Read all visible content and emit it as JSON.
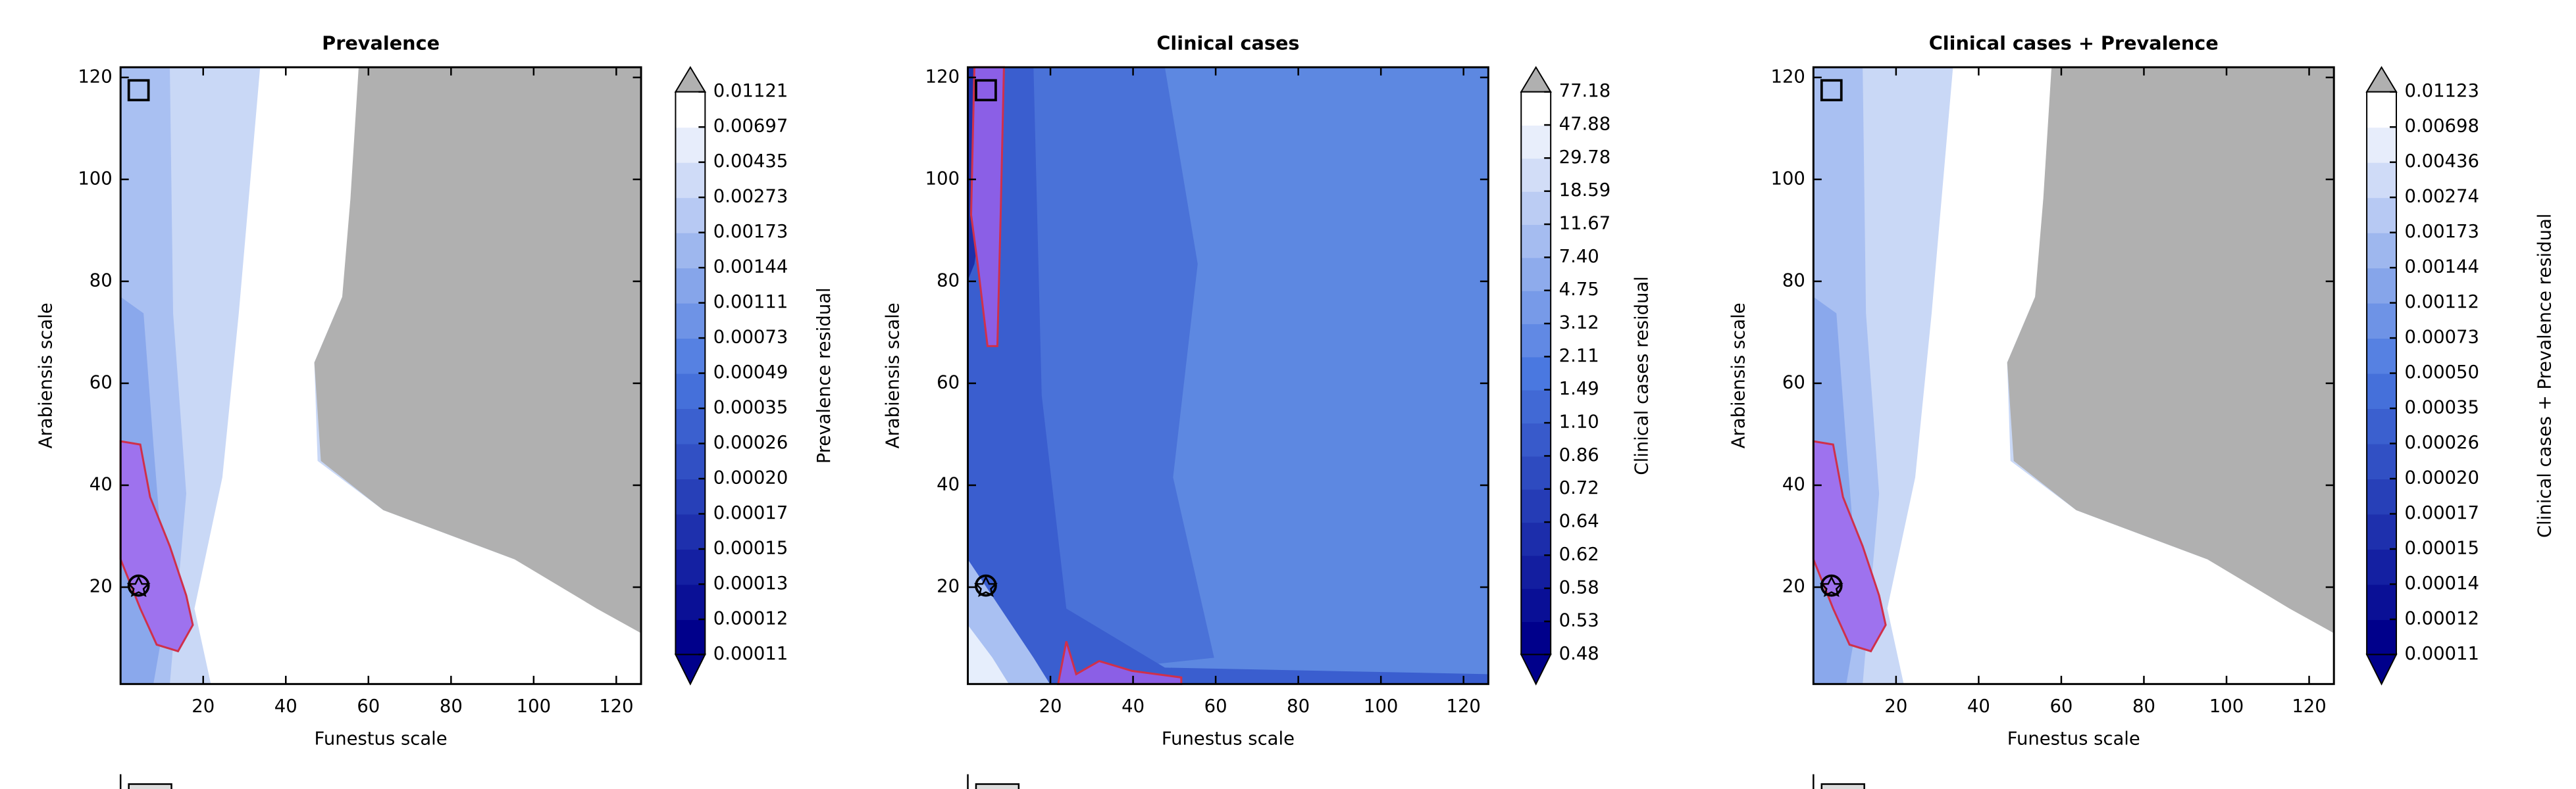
{
  "chart_data": [
    {
      "type": "contour",
      "title": "Prevalence",
      "xlabel": "Funestus scale",
      "ylabel": "Arabiensis scale",
      "xlim": [
        0,
        126
      ],
      "ylim": [
        1,
        122
      ],
      "xticks": [
        20,
        40,
        60,
        80,
        100,
        120
      ],
      "yticks": [
        20,
        40,
        60,
        80,
        100,
        120
      ],
      "colorbar_label": "Prevalence residual",
      "levels": [
        0.00011,
        0.00012,
        0.00013,
        0.00015,
        0.00017,
        {
          "value": 0.0002,
          "label": "0.00020"
        },
        0.00026,
        0.00035,
        0.00049,
        0.00073,
        0.00111,
        0.00144,
        0.00173,
        0.00273,
        0.00435,
        0.00697,
        0.01121
      ]
    },
    {
      "type": "contour",
      "title": "Clinical cases",
      "xlabel": "Funestus scale",
      "ylabel": "Arabiensis scale",
      "xlim": [
        0,
        126
      ],
      "ylim": [
        1,
        122
      ],
      "xticks": [
        20,
        40,
        60,
        80,
        100,
        120
      ],
      "yticks": [
        20,
        40,
        60,
        80,
        100,
        120
      ],
      "colorbar_label": "Clinical cases residual",
      "levels": [
        0.48,
        0.53,
        0.58,
        0.62,
        0.64,
        0.72,
        0.86,
        {
          "value": 1.1,
          "label": "1.10"
        },
        1.49,
        2.11,
        3.12,
        4.75,
        {
          "value": 7.4,
          "label": "7.40"
        },
        11.67,
        18.59,
        29.78,
        47.88,
        77.18
      ]
    },
    {
      "type": "contour",
      "title": "Clinical cases + Prevalence",
      "xlabel": "Funestus scale",
      "ylabel": "Arabiensis scale",
      "xlim": [
        0,
        126
      ],
      "ylim": [
        1,
        122
      ],
      "xticks": [
        20,
        40,
        60,
        80,
        100,
        120
      ],
      "yticks": [
        20,
        40,
        60,
        80,
        100,
        120
      ],
      "colorbar_label": "Clinical cases + Prevalence residual",
      "levels": [
        0.00011,
        0.00012,
        0.00014,
        0.00015,
        0.00017,
        {
          "value": 0.0002,
          "label": "0.00020"
        },
        0.00026,
        0.00035,
        {
          "value": 0.0005,
          "label": "0.00050"
        },
        0.00073,
        0.00112,
        0.00144,
        0.00173,
        0.00274,
        0.00436,
        0.00698,
        0.01123
      ]
    }
  ]
}
